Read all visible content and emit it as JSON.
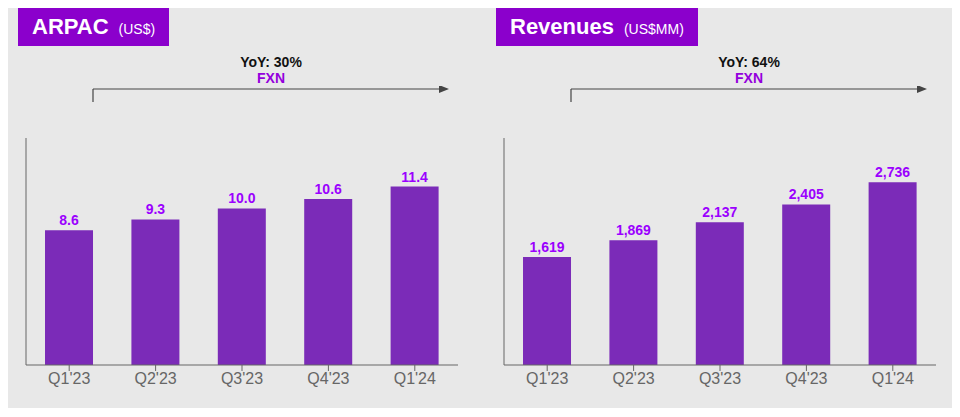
{
  "chart_data": [
    {
      "type": "bar",
      "title": "ARPAC",
      "subtitle": "(US$)",
      "annotations": [
        "YoY: 30%",
        "FXN"
      ],
      "categories": [
        "Q1'23",
        "Q2'23",
        "Q3'23",
        "Q4'23",
        "Q1'24"
      ],
      "values": [
        8.6,
        9.3,
        10.0,
        10.6,
        11.4
      ],
      "value_labels": [
        "8.6",
        "9.3",
        "10.0",
        "10.6",
        "11.4"
      ],
      "data_labels": true,
      "color": "#7B2BB8",
      "ylim": [
        0,
        14.5
      ],
      "grid": false,
      "tick_labels": "x"
    },
    {
      "type": "bar",
      "title": "Revenues",
      "subtitle": "(US$MM)",
      "annotations": [
        "YoY: 64%",
        "FXN"
      ],
      "categories": [
        "Q1'23",
        "Q2'23",
        "Q3'23",
        "Q4'23",
        "Q1'24"
      ],
      "values": [
        1619,
        1869,
        2137,
        2405,
        2736
      ],
      "value_labels": [
        "1,619",
        "1,869",
        "2,137",
        "2,405",
        "2,736"
      ],
      "data_labels": true,
      "color": "#7B2BB8",
      "ylim": [
        0,
        3400
      ],
      "grid": false,
      "tick_labels": "x"
    }
  ]
}
